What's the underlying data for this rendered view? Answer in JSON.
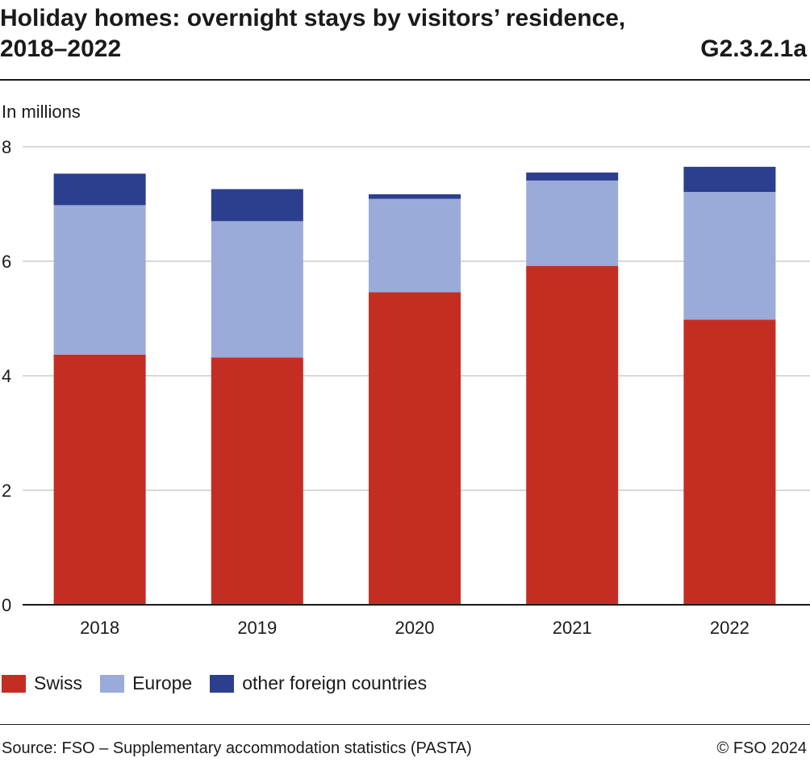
{
  "header": {
    "title": "Holiday homes: overnight stays by visitors’ residence, 2018–2022",
    "code": "G2.3.2.1a"
  },
  "footer": {
    "source": "Source: FSO – Supplementary accommodation statistics (PASTA)",
    "copyright": "© FSO 2024"
  },
  "colors": {
    "swiss": "#c42e22",
    "europe": "#9aabda",
    "other": "#2c3f8e",
    "grid": "#cccccc",
    "axis": "#1a1a1a"
  },
  "chart_data": {
    "type": "bar",
    "stacked": true,
    "ylabel": "In millions",
    "ylim": [
      0,
      8
    ],
    "yticks": [
      0,
      2,
      4,
      6,
      8
    ],
    "grid": true,
    "legend_position": "bottom-left",
    "categories": [
      "2018",
      "2019",
      "2020",
      "2021",
      "2022"
    ],
    "series": [
      {
        "name": "Swiss",
        "values": [
          4.37,
          4.32,
          5.46,
          5.92,
          4.98
        ]
      },
      {
        "name": "Europe",
        "values": [
          2.61,
          2.38,
          1.63,
          1.49,
          2.23
        ]
      },
      {
        "name": "other foreign countries",
        "values": [
          0.55,
          0.56,
          0.08,
          0.14,
          0.44
        ]
      }
    ]
  }
}
